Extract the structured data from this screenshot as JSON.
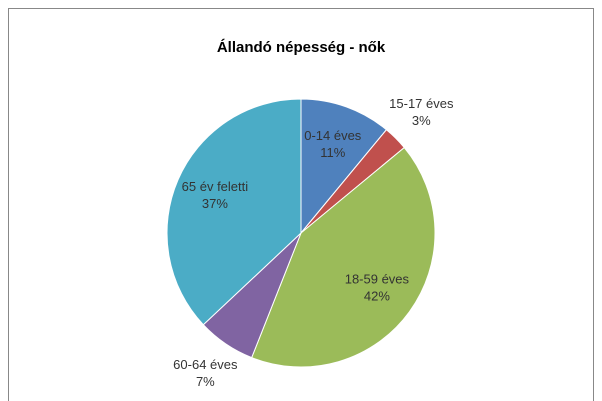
{
  "chart_data": {
    "type": "pie",
    "title": "Állandó népesség - nők",
    "categories": [
      "0-14 éves",
      "15-17 éves",
      "18-59 éves",
      "60-64 éves",
      "65 év feletti"
    ],
    "values": [
      11,
      3,
      42,
      7,
      37
    ],
    "value_labels": [
      "11%",
      "3%",
      "42%",
      "7%",
      "37%"
    ],
    "colors": [
      "#4f81bd",
      "#c0504d",
      "#9bbb59",
      "#8064a2",
      "#4bacc6"
    ]
  }
}
